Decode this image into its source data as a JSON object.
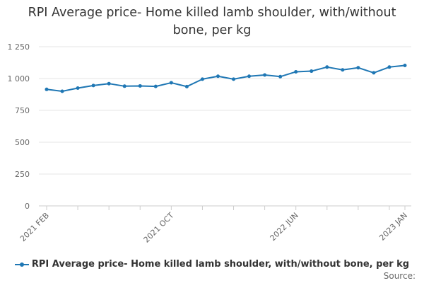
{
  "chart_data": {
    "type": "line",
    "title": "RPI Average price- Home killed lamb shoulder, with/without bone, per kg",
    "xlabel": "",
    "ylabel": "",
    "ylim": [
      0,
      1250
    ],
    "yticks": [
      0,
      250,
      500,
      750,
      1000,
      1250
    ],
    "ytick_labels": [
      "0",
      "250",
      "500",
      "750",
      "1 000",
      "1 250"
    ],
    "x": [
      "2021 FEB",
      "2021 MAR",
      "2021 APR",
      "2021 MAY",
      "2021 JUN",
      "2021 JUL",
      "2021 AUG",
      "2021 SEP",
      "2021 OCT",
      "2021 NOV",
      "2021 DEC",
      "2022 JAN",
      "2022 FEB",
      "2022 MAR",
      "2022 APR",
      "2022 MAY",
      "2022 JUN",
      "2022 JUL",
      "2022 AUG",
      "2022 SEP",
      "2022 OCT",
      "2022 NOV",
      "2022 DEC",
      "2023 JAN"
    ],
    "x_tick_labels": [
      "2021 FEB",
      "2021 OCT",
      "2022 JUN",
      "2023 JAN"
    ],
    "x_tick_indices": [
      0,
      8,
      16,
      23
    ],
    "grid": true,
    "legend_position": "bottom",
    "color": "#1f77b4",
    "series": [
      {
        "name": "RPI Average price- Home killed lamb shoulder, with/without bone, per kg",
        "values": [
          915,
          900,
          925,
          945,
          960,
          940,
          942,
          938,
          967,
          937,
          995,
          1018,
          995,
          1018,
          1028,
          1015,
          1053,
          1058,
          1090,
          1068,
          1085,
          1045,
          1090,
          1103
        ]
      }
    ]
  },
  "credit": "Source:"
}
